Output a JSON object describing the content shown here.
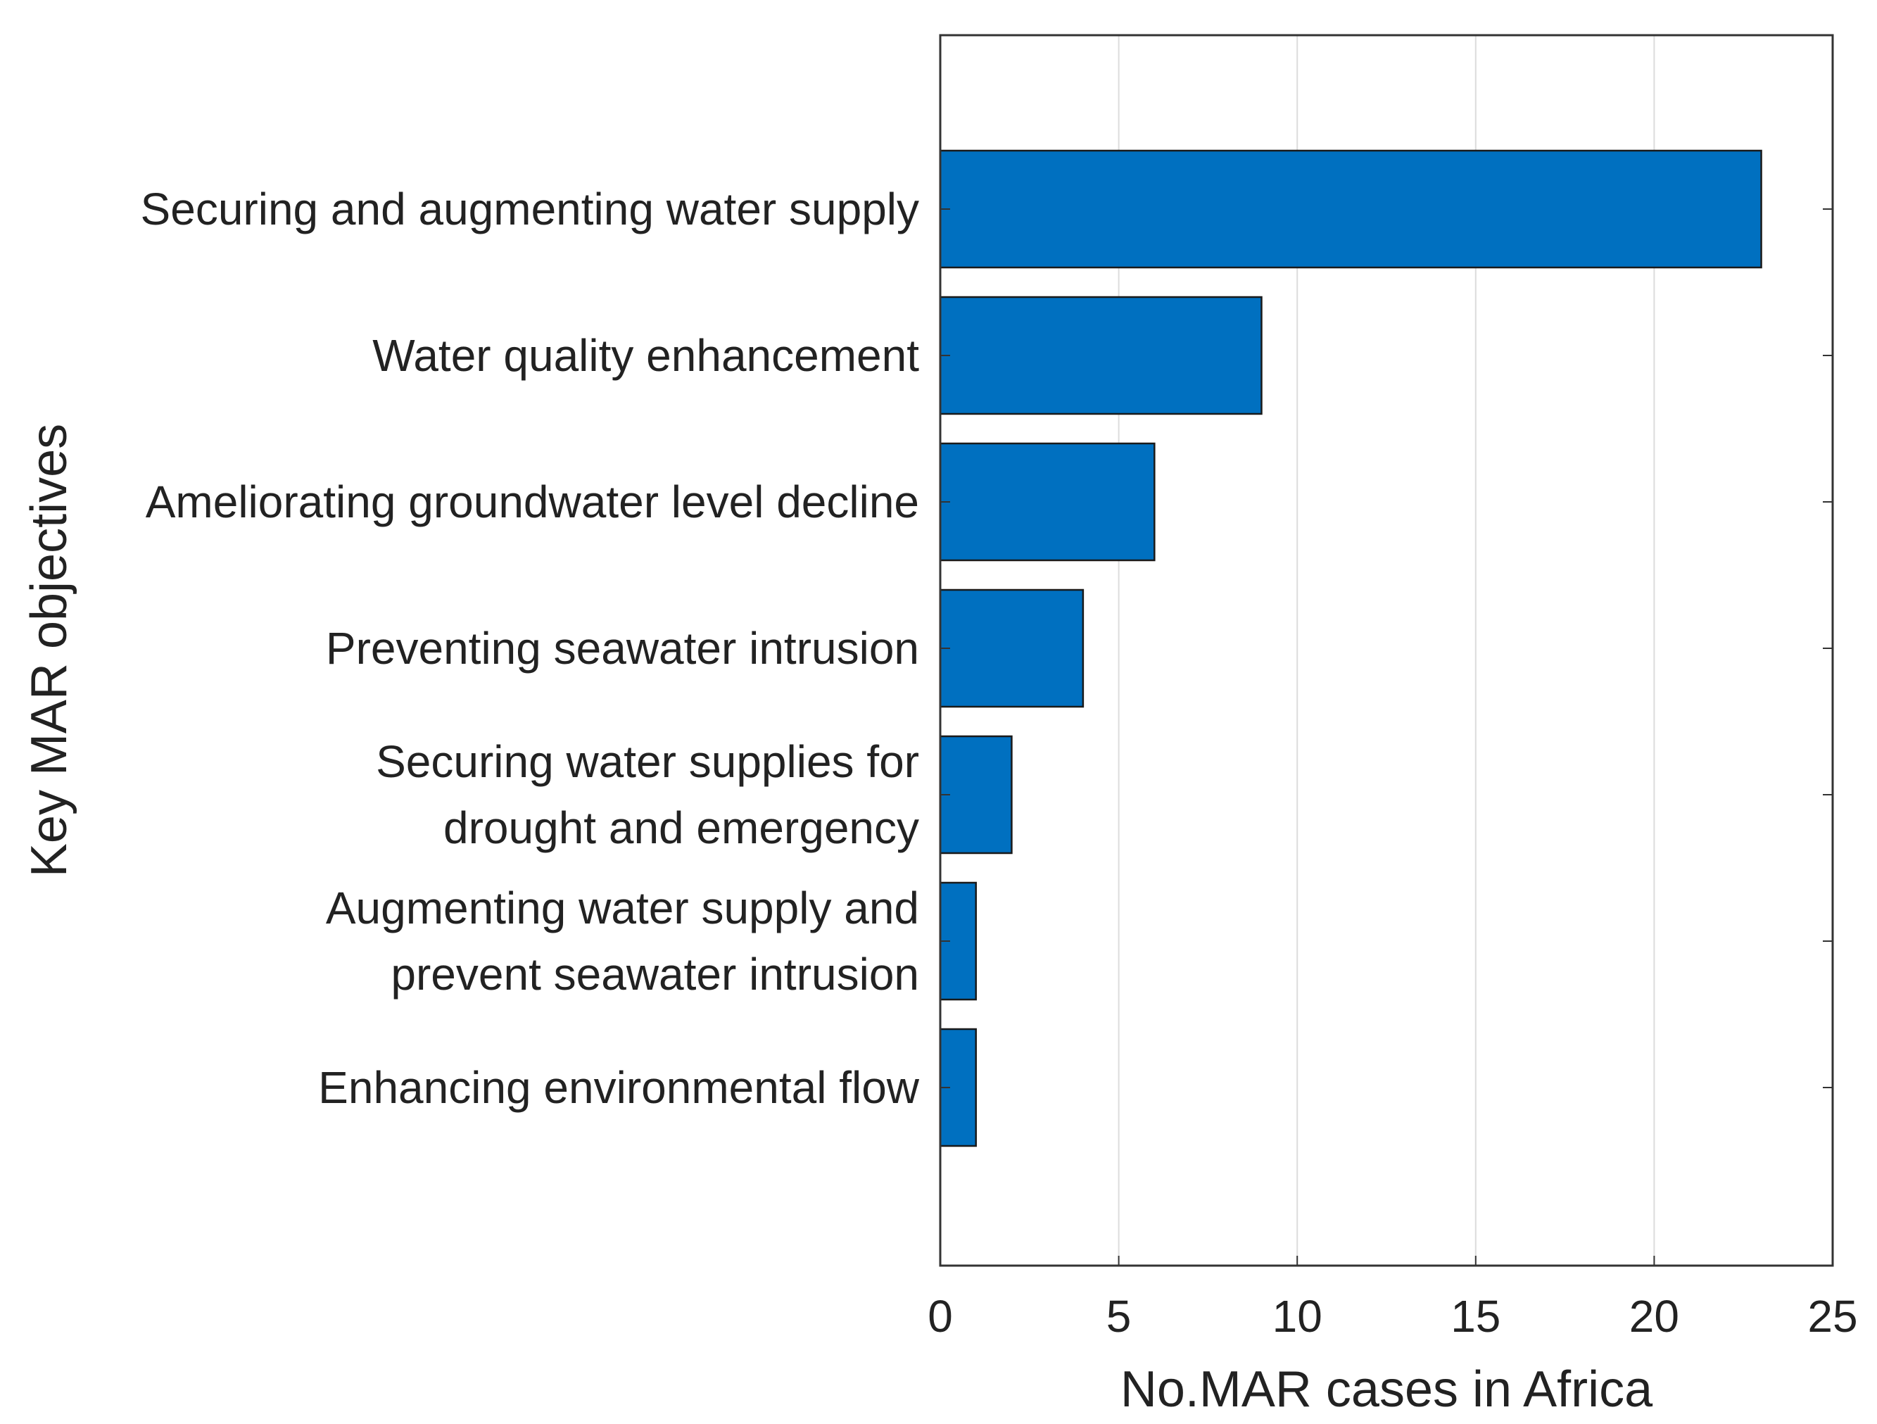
{
  "chart_data": {
    "type": "bar",
    "orientation": "horizontal",
    "categories": [
      [
        "Securing and augmenting water supply"
      ],
      [
        "Water quality enhancement"
      ],
      [
        "Ameliorating groundwater level decline"
      ],
      [
        "Preventing seawater intrusion"
      ],
      [
        "Securing water supplies for",
        "drought and emergency"
      ],
      [
        "Augmenting water supply and",
        "prevent seawater intrusion"
      ],
      [
        "Enhancing environmental flow"
      ]
    ],
    "values": [
      23,
      9,
      6,
      4,
      2,
      1,
      1
    ],
    "xlabel": "No.MAR cases in Africa",
    "ylabel": "Key MAR objectives",
    "xlim": [
      0,
      25
    ],
    "xticks": [
      "0",
      "5",
      "10",
      "15",
      "20",
      "25"
    ],
    "grid": "x",
    "colors": {
      "bar": "#0070c0",
      "bar_edge": "#1a1a1a",
      "grid": "#dcdcdc",
      "axis": "#333333"
    }
  }
}
